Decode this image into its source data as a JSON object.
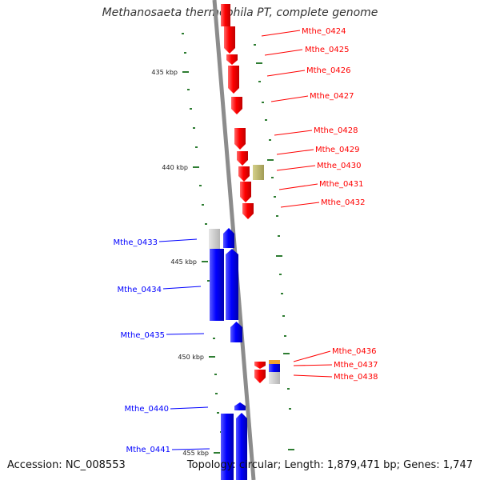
{
  "title": "Methanosaeta thermophila PT, complete genome",
  "accession": "Accession: NC_008553",
  "summary": "Topology: circular; Length: 1,879,471 bp; Genes: 1,747",
  "colors": {
    "forward_cds": "#ff0000",
    "reverse_cds": "#0000ff",
    "backbone": "#8c8c8c",
    "tick": "#2e7d32",
    "other_feature": "#b8b36a",
    "pseudo": "#c8c8c8",
    "orange_feature": "#f0a030"
  },
  "ticks": [
    {
      "label": "435 kbp"
    },
    {
      "label": "440 kbp"
    },
    {
      "label": "445 kbp"
    },
    {
      "label": "450 kbp"
    },
    {
      "label": "455 kbp"
    }
  ],
  "forward_genes": [
    "Mthe_0424",
    "Mthe_0425",
    "Mthe_0426",
    "Mthe_0427",
    "Mthe_0428",
    "Mthe_0429",
    "Mthe_0430",
    "Mthe_0431",
    "Mthe_0432",
    "Mthe_0436",
    "Mthe_0437",
    "Mthe_0438"
  ],
  "reverse_genes": [
    "Mthe_0433",
    "Mthe_0434",
    "Mthe_0435",
    "Mthe_0440",
    "Mthe_0441"
  ]
}
